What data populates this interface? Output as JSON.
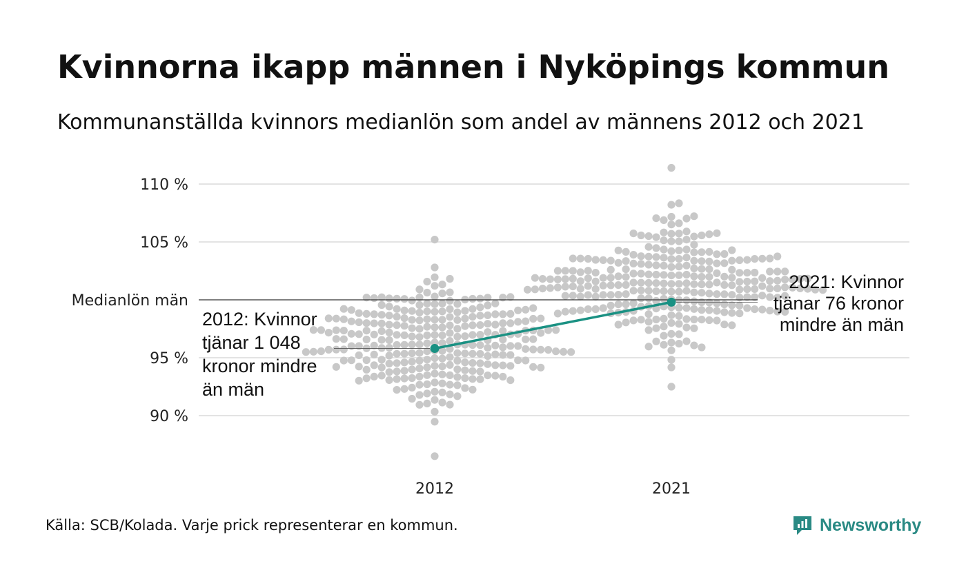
{
  "title": "Kvinnorna ikapp männen i Nyköpings kommun",
  "subtitle": "Kommunanställda kvinnors medianlön som andel av männens 2012 och 2021",
  "source": "Källa: SCB/Kolada. Varje prick representerar en kommun.",
  "brand": {
    "name": "Newsworthy",
    "icon": "newsworthy-logo-icon",
    "color": "#2a8a84"
  },
  "colors": {
    "dots": "#c8c8c8",
    "highlight": "#1a9183",
    "grid": "#e3e3e3",
    "reference": "#333333"
  },
  "chart_data": {
    "type": "scatter",
    "subtype": "beeswarm",
    "title": "Kvinnorna ikapp männen i Nyköpings kommun",
    "subtitle": "Kommunanställda kvinnors medianlön som andel av männens 2012 och 2021",
    "categories": [
      "2012",
      "2021"
    ],
    "y_ticks": [
      {
        "value": 90,
        "label": "90 %"
      },
      {
        "value": 95,
        "label": "95 %"
      },
      {
        "value": 105,
        "label": "105 %"
      },
      {
        "value": 110,
        "label": "110 %"
      }
    ],
    "ylim": [
      85.5,
      112
    ],
    "grid": true,
    "reference_line": {
      "value": 100,
      "label": "Medianlön män"
    },
    "distributions": [
      {
        "category": "2012",
        "min": 86.5,
        "max": 105.2,
        "center": 96.3,
        "spread": 2.6,
        "count": 290
      },
      {
        "category": "2021",
        "min": 92.5,
        "max": 111.4,
        "center": 101.4,
        "spread": 2.5,
        "count": 290
      }
    ],
    "highlight": {
      "name": "Nyköping",
      "points": [
        {
          "category": "2012",
          "value": 95.8
        },
        {
          "category": "2021",
          "value": 99.8
        }
      ]
    },
    "annotations": [
      {
        "category": "2012",
        "value": 95.8,
        "lines": [
          "2012: Kvinnor",
          "tjänar 1 048",
          "kronor mindre",
          "än män"
        ]
      },
      {
        "category": "2021",
        "value": 99.8,
        "lines": [
          "2021: Kvinnor",
          "tjänar 76 kronor",
          "mindre än män"
        ]
      }
    ]
  }
}
